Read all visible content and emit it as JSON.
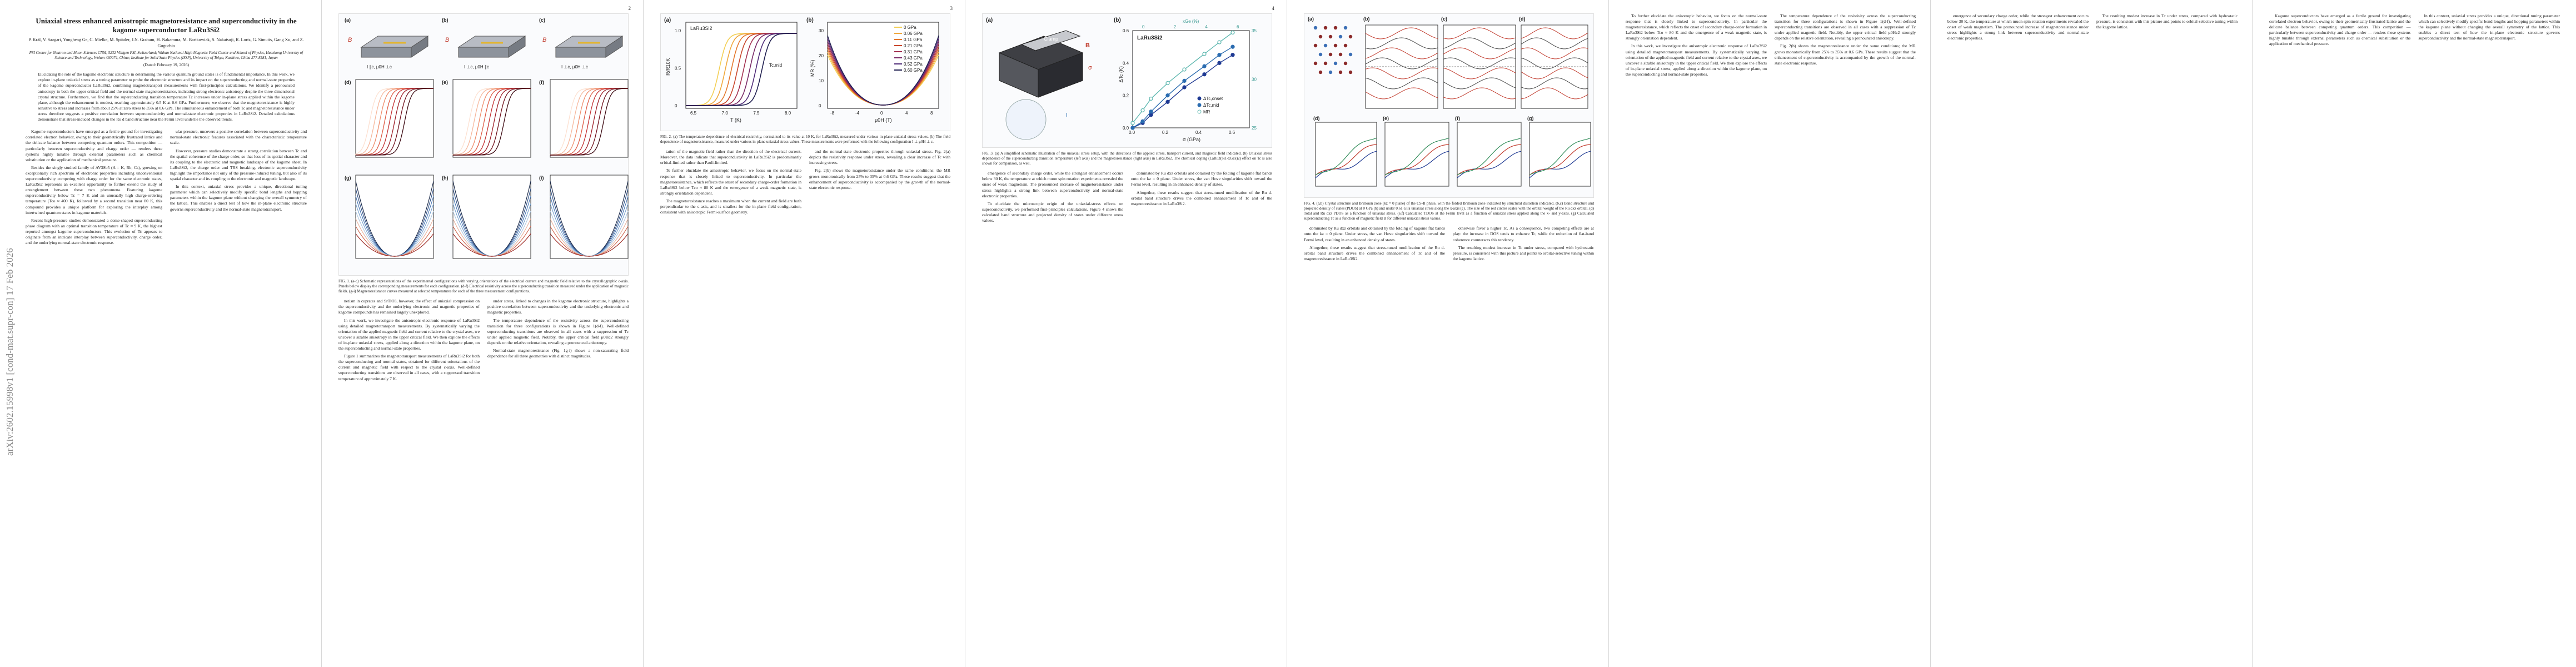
{
  "arxiv_id": "arXiv:2602.15998v1  [cond-mat.supr-con]  17 Feb 2026",
  "pages": [
    {
      "number": "1"
    },
    {
      "number": "2"
    },
    {
      "number": "3"
    },
    {
      "number": "4"
    }
  ],
  "paper": {
    "title": "Uniaxial stress enhanced anisotropic magnetoresistance and superconductivity in the kagome superconductor LaRu3Si2",
    "authors": "P. Král, V. Sazgari, Yongheng Ge, C. Mielke, M. Spitaler, J.N. Graham, H. Nakamura, M. Bartkowiak, S. Nakatsuji, R. Lortz, G. Simutis, Gang Xu, and Z. Guguchia",
    "affiliations": "PSI Center for Neutron and Muon Sciences CNM, 5232 Villigen PSI, Switzerland; Wuhan National High Magnetic Field Center and School of Physics, Huazhong University of Science and Technology, Wuhan 430074, China; Institute for Solid State Physics (ISSP), University of Tokyo, Kashiwa, Chiba 277-8581, Japan",
    "date": "(Dated: February 19, 2026)",
    "abstract": "Elucidating the role of the kagome electronic structure in determining the various quantum ground states is of fundamental importance. In this work, we explore in-plane uniaxial stress as a tuning parameter to probe the electronic structure and its impact on the superconducting and normal-state properties of the kagome superconductor LaRu3Si2, combining magnetotransport measurements with first-principles calculations. We identify a pronounced anisotropy in both the upper critical field and the normal-state magnetoresistance, indicating strong electronic anisotropy despite the three-dimensional crystal structure. Furthermore, we find that the superconducting transition temperature Tc increases under in-plane stress applied within the kagome plane, although the enhancement is modest, reaching approximately 0.5 K at 0.6 GPa. Furthermore, we observe that the magnetoresistance is highly sensitive to stress and increases from about 25% at zero stress to 35% at 0.6 GPa. The simultaneous enhancement of both Tc and magnetoresistance under stress therefore suggests a positive correlation between superconductivity and normal-state electronic properties in LaRu3Si2. Detailed calculations demonstrate that stress-induced changes in the Ru d band structure near the Fermi level underlie the observed trends.",
    "col_left": [
      "Kagome superconductors have emerged as a fertile ground for investigating correlated electron behavior, owing to their geometrically frustrated lattice and the delicate balance between competing quantum orders. This competition — particularly between superconductivity and charge order — renders these systems highly tunable through external parameters such as chemical substitution or the application of mechanical pressure.",
      "Besides the singly studied family of AV3Sb5 (A = K, Rb, Cs), growing on exceptionally rich spectrum of electronic properties including unconventional superconductivity competing with charge order for the same electronic states, LaRu3Si2 represents an excellent opportunity to further extend the study of entanglement between these two phenomena. Featuring kagome superconductivity below Tc = 7 K and an unusually high charge-ordering temperature (Tco ≈ 400 K), followed by a second transition near 80 K, this compound provides a unique platform for exploring the interplay among intertwined quantum states in kagome materials.",
      "Recent high-pressure studies demonstrated a dome-shaped superconducting phase diagram with an optimal transition temperature of Tc ≈ 9 K, the highest reported amongst kagome superconductors. This evolution of Tc appears to originate from an intricate interplay between superconductivity, charge order, and the underlying normal-state electronic response."
    ],
    "col_right": [
      "ular pressure, uncovers a positive correlation between superconductivity and normal-state electronic features associated with the characteristic temperature scale.",
      "However, pressure studies demonstrate a strong correlation between Tc and the spatial coherence of the charge order, so that loss of its spatial character and its coupling to the electronic and magnetic landscape of the kagome sheet. In LaRu3Si2, the charge order and TRS breaking, electronic superconductivity highlight the importance not only of the pressure-induced tuning, but also of its spatial character and its coupling to the electronic and magnetic landscape.",
      "In this context, uniaxial stress provides a unique, directional tuning parameter which can selectively modify specific bond lengths and hopping parameters within the kagome plane without changing the overall symmetry of the lattice. This enables a direct test of how the in-plane electronic structure governs superconductivity and the normal-state magnetotransport."
    ],
    "fig1_panels": [
      "(a)",
      "(b)",
      "(c)",
      "(d)",
      "(e)",
      "(f)",
      "(g)",
      "(h)",
      "(i)"
    ],
    "fig1_geom": [
      "I ∥c, μ0H ⊥c",
      "I ⊥c, μ0H ∥c",
      "I ⊥c, μ0H ⊥c"
    ],
    "fig1_caption": "FIG. 1. (a-c) Schematic representations of the experimental configurations with varying orientations of the electrical current and magnetic field relative to the crystallographic c-axis. Panels below display the corresponding measurements for each configuration. (d-f) Electrical resistivity across the superconducting transition measured under the application of magnetic fields. (g-i) Magnetoresistance curves measured at selected temperatures for each of the three measurement configurations.",
    "p2_text": [
      "netism in cuprates and SrTiO3, however, the effect of uniaxial compression on the superconductivity and the underlying electronic and magnetic properties of kagome compounds has remained largely unexplored.",
      "In this work, we investigate the anisotropic electronic response of LaRu3Si2 using detailed magnetotransport measurements. By systematically varying the orientation of the applied magnetic field and current relative to the crystal axes, we uncover a sizable anisotropy in the upper critical field. We then explore the effects of in-plane uniaxial stress, applied along a direction within the kagome plane, on the superconducting and normal-state properties.",
      "Figure 1 summarizes the magnetotransport measurements of LaRu3Si2 for both the superconducting and normal states, obtained for different orientations of the current and magnetic field with respect to the crystal c-axis. Well-defined superconducting transitions are observed in all cases, with a suppressed transition temperature of approximately 7 K."
    ],
    "p2_text_b": [
      "under stress, linked to changes in the kagome electronic structure, highlights a positive correlation between superconductivity and the underlying electronic and magnetic properties.",
      "The temperature dependence of the resistivity across the superconducting transition for three configurations is shown in Figure 1(d-f). Well-defined superconducting transitions are observed in all cases with a suppression of Tc under applied magnetic field. Notably, the upper critical field μ0Hc2 strongly depends on the relative orientation, revealing a pronounced anisotropy.",
      "Normal-state magnetoresistance (Fig. 1g-i) shows a non-saturating field dependence for all three geometries with distinct magnitudes."
    ],
    "fig2_caption": "FIG. 2. (a) The temperature dependence of electrical resistivity, normalized to its value at 10 K, for LaRu3Si2, measured under various in-plane uniaxial stress values. (b) The field dependence of magnetoresistance, measured under various in-plane uniaxial stress values. These measurements were performed with the following configuration I ⊥ μ0H ⊥ c.",
    "p3_text": [
      "tation of the magnetic field rather than the direction of the electrical current. Moreover, the data indicate that superconductivity in LaRu3Si2 is predominantly orbital-limited rather than Pauli-limited.",
      "To further elucidate the anisotropic behavior, we focus on the normal-state response that is closely linked to superconductivity. In particular the magnetoresistance, which reflects the onset of secondary charge-order formation in LaRu3Si2 below Tco ≈ 80 K and the emergence of a weak magnetic state, is strongly orientation dependent.",
      "The magnetoresistance reaches a maximum when the current and field are both perpendicular to the c-axis, and is smallest for the in-plane field configuration, consistent with anisotropic Fermi-surface geometry."
    ],
    "p3_text_b": [
      "and the normal-state electronic properties through uniaxial stress. Fig. 2(a) depicts the resistivity response under stress, revealing a clear increase of Tc with increasing stress.",
      "Fig. 2(b) shows the magnetoresistance under the same conditions; the MR grows monotonically from 25% to 35% at 0.6 GPa. These results suggest that the enhancement of superconductivity is accompanied by the growth of the normal-state electronic response."
    ],
    "fig3_panels": [
      "(a)",
      "(b)"
    ],
    "fig3_caption": "FIG. 3. (a) A simplified schematic illustration of the uniaxial stress setup, with the directions of the applied stress, transport current, and magnetic field indicated. (b) Uniaxial stress dependence of the superconducting transition temperature (left axis) and the magnetoresistance (right axis) in LaRu3Si2. The chemical doping (LaRu3(Si1-xGex)2) effect on Tc is also shown for comparison, as well.",
    "p4_text": [
      "emergence of secondary charge order, while the strongest enhancement occurs below 30 K, the temperature at which muon spin rotation experiments revealed the onset of weak magnetism. The pronounced increase of magnetoresistance under stress highlights a strong link between superconductivity and normal-state electronic properties.",
      "To elucidate the microscopic origin of the uniaxial-stress effects on superconductivity, we performed first-principles calculations. Figure 4 shows the calculated band structure and projected density of states under different stress values."
    ],
    "p4_text_b": [
      "dominated by Ru dxz orbitals and obtained by the folding of kagome flat bands onto the kz = 0 plane. Under stress, the van Hove singularities shift toward the Fermi level, resulting in an enhanced density of states.",
      "Altogether, these results suggest that stress-tuned modification of the Ru d-orbital band structure drives the combined enhancement of Tc and of the magnetoresistance in LaRu3Si2."
    ],
    "p4_text_c": [
      "otherwise favor a higher Tc. As a consequence, two competing effects are at play: the increase in DOS tends to enhance Tc, while the reduction of flat-band coherence counteracts this tendency.",
      "The resulting modest increase in Tc under stress, compared with hydrostatic pressure, is consistent with this picture and points to orbital-selective tuning within the kagome lattice."
    ],
    "fig4_panels": [
      "(a)",
      "(b)",
      "(c)",
      "(d)",
      "(e)",
      "(f)",
      "(g)"
    ],
    "fig4_caption": "FIG. 4. (a,b) Crystal structure and Brillouin zone (kz = 0 plane) of the CS-II phase, with the folded Brillouin zone indicated by structural distortion indicated. (b,c) Band structure and projected density of states (PDOS) at 0 GPa (b) and under 0.61 GPa uniaxial stress along the x-axis (c). The size of the red circles scales with the orbital weight of the Ru dxz orbital. (d) Total and Ru dxz PDOS as a function of uniaxial stress. (e,f) Calculated TDOS at the Fermi level as a function of uniaxial stress applied along the x- and y-axes. (g) Calculated superconducting Tc as a function of magnetic field B for different uniaxial stress values."
  },
  "fig2_data": {
    "a": {
      "ylabel": "R/R10K",
      "xlabel": "T (K)",
      "xticks": [
        "6.5",
        "7.0",
        "7.5",
        "8.0"
      ],
      "yticks": [
        "0",
        "0.5",
        "1.0"
      ],
      "label": "LaRu3Si2",
      "tc_label": "Tc,mid"
    },
    "b": {
      "ylabel": "MR (%)",
      "xlabel": "μ0H (T)",
      "xticks": [
        "-8",
        "-4",
        "0",
        "4",
        "8"
      ],
      "yticks": [
        "0",
        "10",
        "20",
        "30"
      ]
    },
    "legend": [
      "0 GPa",
      "0.06 GPa",
      "0.11 GPa",
      "0.21 GPa",
      "0.31 GPa",
      "0.43 GPa",
      "0.52 GPa",
      "0.60 GPa"
    ],
    "colors": [
      "#f3cf55",
      "#f0a83c",
      "#e4782d",
      "#c9472c",
      "#a33050",
      "#7a2a67",
      "#4f2a78",
      "#1f1e4f"
    ]
  },
  "chart_data": {
    "type": "line",
    "title": "LaRu3Si2",
    "xlabel": "σ (GPa)",
    "ylabel": "ΔTc (K)",
    "ylabel_right": "MR9T,10K (%)",
    "ylim": [
      0,
      0.6
    ],
    "ylim_right": [
      25,
      35
    ],
    "xlim": [
      0,
      0.7
    ],
    "series": [
      {
        "name": "ΔTc,onset",
        "x": [
          0,
          0.06,
          0.11,
          0.21,
          0.31,
          0.43,
          0.52,
          0.6
        ],
        "values": [
          0,
          0.03,
          0.08,
          0.16,
          0.25,
          0.33,
          0.4,
          0.45
        ],
        "color": "#1f3a93"
      },
      {
        "name": "ΔTc,mid",
        "x": [
          0,
          0.06,
          0.11,
          0.21,
          0.31,
          0.43,
          0.52,
          0.6
        ],
        "values": [
          0,
          0.04,
          0.1,
          0.2,
          0.29,
          0.38,
          0.45,
          0.5
        ],
        "color": "#2b6cb0"
      },
      {
        "name": "MR",
        "x": [
          0,
          0.06,
          0.11,
          0.21,
          0.31,
          0.43,
          0.52,
          0.6
        ],
        "values": [
          25.5,
          26.8,
          28,
          29.6,
          31,
          32.6,
          33.8,
          34.8
        ],
        "color": "#5fb8b0"
      }
    ],
    "top_axis": {
      "label": "xGe (%)",
      "ticks": [
        "0",
        "2",
        "4",
        "6"
      ]
    },
    "xticks": [
      "0.0",
      "0.2",
      "0.4",
      "0.6"
    ],
    "yticks": [
      "0.0",
      "0.2",
      "0.4",
      "0.6"
    ],
    "yticks_right": [
      "25",
      "30",
      "35"
    ]
  },
  "fig3_text": {
    "clamp": "Clamp",
    "stress": "σ",
    "field": "B",
    "current": "I"
  }
}
